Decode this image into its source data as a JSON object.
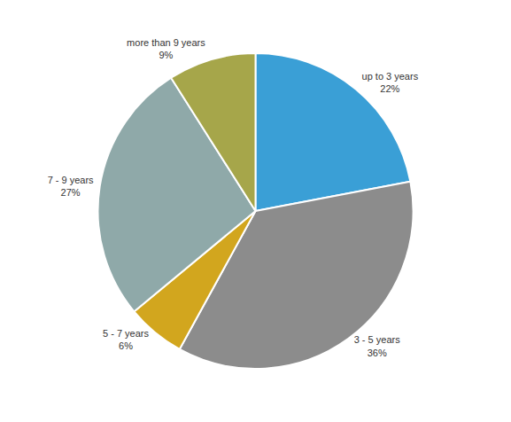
{
  "chart_data": {
    "type": "pie",
    "categories": [
      "up to 3 years",
      "3 - 5 years",
      "5 - 7 years",
      "7 - 9 years",
      "more than 9 years"
    ],
    "values": [
      22,
      36,
      6,
      27,
      9
    ],
    "value_labels": [
      "22%",
      "36%",
      "6%",
      "27%",
      "9%"
    ],
    "colors": [
      "#3a9fd6",
      "#8c8c8c",
      "#d2a61e",
      "#8fa9a9",
      "#a6a64a"
    ],
    "data_labels": true
  }
}
